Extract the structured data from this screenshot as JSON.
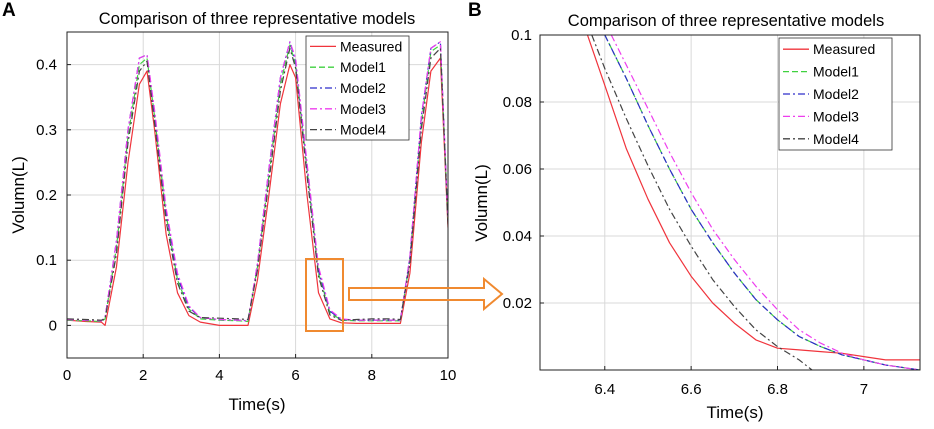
{
  "figure": {
    "panels": [
      "A",
      "B"
    ],
    "colors": {
      "Measured": "#f0343c",
      "Model1": "#3fd13f",
      "Model2": "#2d2dc9",
      "Model3": "#ee3eee",
      "Model4": "#444444",
      "highlight": "#f08a30"
    },
    "dash": {
      "Measured": "",
      "Model1": "6,3",
      "Model2": "7,3,2,3",
      "Model3": "7,3,2,3",
      "Model4": "7,3,2,3"
    }
  },
  "chart_data": [
    {
      "panel": "A",
      "type": "line",
      "title": "Comparison of three representative models",
      "xlabel": "Time(s)",
      "ylabel": "Volumn(L)",
      "xlim": [
        0,
        10
      ],
      "ylim": [
        -0.05,
        0.45
      ],
      "xticks": [
        0,
        2,
        4,
        6,
        8,
        10
      ],
      "yticks": [
        0,
        0.1,
        0.2,
        0.3,
        0.4
      ],
      "ytick_labels": [
        "0",
        "0.1",
        "0.2",
        "0.3",
        "0.4"
      ],
      "grid": true,
      "legend": {
        "position": "top-right",
        "entries": [
          "Measured",
          "Model1",
          "Model2",
          "Model3",
          "Model4"
        ]
      },
      "series": [
        {
          "name": "Measured",
          "x": [
            0,
            0.5,
            0.9,
            1.0,
            1.3,
            1.6,
            1.9,
            2.1,
            2.3,
            2.6,
            2.9,
            3.2,
            3.5,
            4.0,
            4.5,
            4.75,
            5.0,
            5.3,
            5.6,
            5.85,
            6.0,
            6.3,
            6.6,
            6.9,
            7.2,
            7.6,
            8.0,
            8.5,
            8.75,
            9.0,
            9.3,
            9.55,
            9.8,
            10.0
          ],
          "y": [
            0.008,
            0.006,
            0.005,
            0.0,
            0.09,
            0.25,
            0.37,
            0.39,
            0.3,
            0.14,
            0.05,
            0.015,
            0.005,
            0.0,
            0.0,
            0.0,
            0.07,
            0.2,
            0.34,
            0.4,
            0.38,
            0.2,
            0.05,
            0.01,
            0.004,
            0.003,
            0.003,
            0.003,
            0.003,
            0.08,
            0.28,
            0.39,
            0.41,
            0.15
          ]
        },
        {
          "name": "Model1",
          "x": [
            0,
            0.5,
            0.9,
            1.0,
            1.3,
            1.6,
            1.9,
            2.1,
            2.3,
            2.6,
            2.9,
            3.2,
            3.5,
            4.0,
            4.5,
            4.75,
            5.0,
            5.3,
            5.6,
            5.85,
            6.0,
            6.3,
            6.6,
            6.9,
            7.2,
            7.6,
            8.0,
            8.5,
            8.75,
            9.0,
            9.3,
            9.55,
            9.8,
            10.0
          ],
          "y": [
            0.008,
            0.007,
            0.006,
            0.01,
            0.12,
            0.29,
            0.4,
            0.41,
            0.32,
            0.17,
            0.07,
            0.025,
            0.01,
            0.008,
            0.007,
            0.006,
            0.09,
            0.23,
            0.37,
            0.43,
            0.4,
            0.24,
            0.08,
            0.02,
            0.008,
            0.007,
            0.007,
            0.007,
            0.007,
            0.1,
            0.31,
            0.42,
            0.43,
            0.16
          ]
        },
        {
          "name": "Model2",
          "x": [
            0,
            0.5,
            0.9,
            1.0,
            1.3,
            1.6,
            1.9,
            2.1,
            2.3,
            2.6,
            2.9,
            3.2,
            3.5,
            4.0,
            4.5,
            4.75,
            5.0,
            5.3,
            5.6,
            5.85,
            6.0,
            6.3,
            6.6,
            6.9,
            7.2,
            7.6,
            8.0,
            8.5,
            8.75,
            9.0,
            9.3,
            9.55,
            9.8,
            10.0
          ],
          "y": [
            0.009,
            0.008,
            0.007,
            0.012,
            0.13,
            0.3,
            0.41,
            0.415,
            0.325,
            0.175,
            0.075,
            0.028,
            0.012,
            0.009,
            0.008,
            0.007,
            0.095,
            0.24,
            0.38,
            0.435,
            0.405,
            0.245,
            0.085,
            0.022,
            0.009,
            0.008,
            0.008,
            0.008,
            0.008,
            0.105,
            0.32,
            0.425,
            0.435,
            0.16
          ]
        },
        {
          "name": "Model3",
          "x": [
            0,
            0.5,
            0.9,
            1.0,
            1.3,
            1.6,
            1.9,
            2.1,
            2.3,
            2.6,
            2.9,
            3.2,
            3.5,
            4.0,
            4.5,
            4.75,
            5.0,
            5.3,
            5.6,
            5.85,
            6.0,
            6.3,
            6.6,
            6.9,
            7.2,
            7.6,
            8.0,
            8.5,
            8.75,
            9.0,
            9.3,
            9.55,
            9.8,
            10.0
          ],
          "y": [
            0.009,
            0.008,
            0.007,
            0.012,
            0.13,
            0.3,
            0.41,
            0.415,
            0.33,
            0.18,
            0.08,
            0.03,
            0.012,
            0.009,
            0.008,
            0.007,
            0.095,
            0.24,
            0.38,
            0.435,
            0.41,
            0.25,
            0.09,
            0.024,
            0.01,
            0.008,
            0.008,
            0.008,
            0.008,
            0.105,
            0.32,
            0.425,
            0.435,
            0.16
          ]
        },
        {
          "name": "Model4",
          "x": [
            0,
            0.5,
            0.9,
            1.0,
            1.3,
            1.6,
            1.9,
            2.1,
            2.3,
            2.6,
            2.9,
            3.2,
            3.5,
            4.0,
            4.5,
            4.75,
            5.0,
            5.3,
            5.6,
            5.85,
            6.0,
            6.3,
            6.6,
            6.9,
            7.2,
            7.6,
            8.0,
            8.5,
            8.75,
            9.0,
            9.3,
            9.55,
            9.8,
            10.0
          ],
          "y": [
            0.01,
            0.009,
            0.008,
            0.01,
            0.11,
            0.28,
            0.39,
            0.405,
            0.31,
            0.16,
            0.065,
            0.022,
            0.012,
            0.011,
            0.01,
            0.009,
            0.085,
            0.22,
            0.36,
            0.425,
            0.395,
            0.23,
            0.075,
            0.016,
            0.008,
            0.009,
            0.01,
            0.01,
            0.009,
            0.095,
            0.3,
            0.41,
            0.425,
            0.155
          ]
        }
      ]
    },
    {
      "panel": "B",
      "type": "line",
      "title": "Comparison of three representative models",
      "xlabel": "Time(s)",
      "ylabel": "Volumn(L)",
      "xlim": [
        6.25,
        7.13
      ],
      "ylim": [
        0.0,
        0.1
      ],
      "xticks": [
        6.4,
        6.6,
        6.8,
        7.0
      ],
      "xtick_labels": [
        "6.4",
        "6.6",
        "6.8",
        "7"
      ],
      "yticks": [
        0.02,
        0.04,
        0.06,
        0.08,
        0.1
      ],
      "ytick_labels": [
        "0.02",
        "0.04",
        "0.06",
        "0.08",
        "0.1"
      ],
      "grid": true,
      "legend": {
        "position": "top-right",
        "entries": [
          "Measured",
          "Model1",
          "Model2",
          "Model3",
          "Model4"
        ]
      },
      "series": [
        {
          "name": "Measured",
          "x": [
            6.36,
            6.4,
            6.45,
            6.5,
            6.55,
            6.6,
            6.65,
            6.7,
            6.75,
            6.8,
            6.85,
            6.9,
            6.95,
            7.0,
            7.05,
            7.13
          ],
          "y": [
            0.1,
            0.085,
            0.066,
            0.051,
            0.038,
            0.028,
            0.02,
            0.014,
            0.009,
            0.0065,
            0.006,
            0.0055,
            0.005,
            0.004,
            0.003,
            0.003
          ]
        },
        {
          "name": "Model1",
          "x": [
            6.4,
            6.45,
            6.5,
            6.55,
            6.6,
            6.65,
            6.7,
            6.75,
            6.8,
            6.85,
            6.9,
            6.95,
            7.0,
            7.05,
            7.13
          ],
          "y": [
            0.1,
            0.087,
            0.073,
            0.06,
            0.048,
            0.038,
            0.029,
            0.021,
            0.015,
            0.01,
            0.007,
            0.0045,
            0.003,
            0.0015,
            0.0
          ]
        },
        {
          "name": "Model2",
          "x": [
            6.4,
            6.45,
            6.5,
            6.55,
            6.6,
            6.65,
            6.7,
            6.75,
            6.8,
            6.85,
            6.9,
            6.95,
            7.0,
            7.05,
            7.13
          ],
          "y": [
            0.1,
            0.087,
            0.073,
            0.06,
            0.048,
            0.038,
            0.029,
            0.021,
            0.015,
            0.01,
            0.007,
            0.0045,
            0.003,
            0.0015,
            0.0
          ]
        },
        {
          "name": "Model3",
          "x": [
            6.415,
            6.45,
            6.5,
            6.55,
            6.6,
            6.65,
            6.7,
            6.75,
            6.8,
            6.85,
            6.9,
            6.95,
            7.0,
            7.05,
            7.13
          ],
          "y": [
            0.1,
            0.091,
            0.078,
            0.065,
            0.053,
            0.042,
            0.033,
            0.025,
            0.018,
            0.012,
            0.008,
            0.005,
            0.003,
            0.0015,
            0.0
          ]
        },
        {
          "name": "Model4",
          "x": [
            6.37,
            6.4,
            6.45,
            6.5,
            6.55,
            6.6,
            6.65,
            6.7,
            6.75,
            6.8,
            6.85,
            6.88
          ],
          "y": [
            0.1,
            0.09,
            0.075,
            0.061,
            0.048,
            0.037,
            0.027,
            0.019,
            0.012,
            0.007,
            0.003,
            0.0
          ]
        }
      ]
    }
  ]
}
